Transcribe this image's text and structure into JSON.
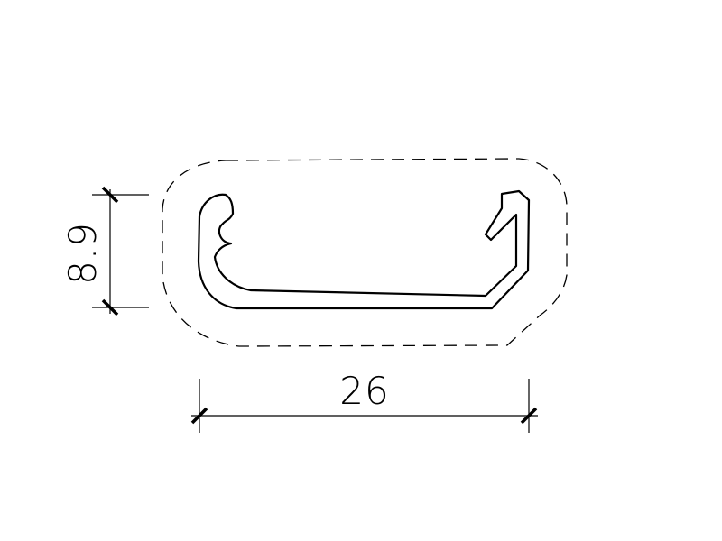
{
  "drawing": {
    "dimensions": {
      "height_label": "8.9",
      "width_label": "26"
    },
    "colors": {
      "line": "#000000",
      "background": "#ffffff"
    }
  }
}
